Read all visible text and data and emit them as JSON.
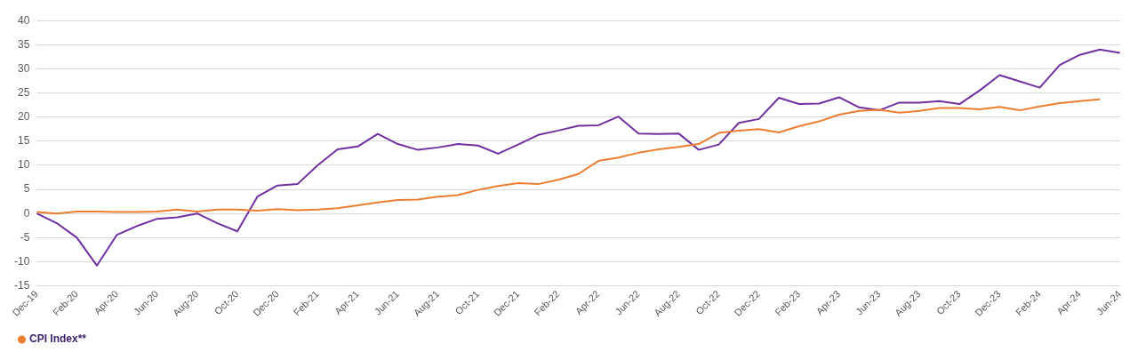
{
  "chart_data": {
    "type": "line",
    "categories": [
      "Dec-19",
      null,
      "Feb-20",
      null,
      "Apr-20",
      null,
      "Jun-20",
      null,
      "Aug-20",
      null,
      "Oct-20",
      null,
      "Dec-20",
      null,
      "Feb-21",
      null,
      "Apr-21",
      null,
      "Jun-21",
      null,
      "Aug-21",
      null,
      "Oct-21",
      null,
      "Dec-21",
      null,
      "Feb-22",
      null,
      "Apr-22",
      null,
      "Jun-22",
      null,
      "Aug-22",
      null,
      "Oct-22",
      null,
      "Dec-22",
      null,
      "Feb-23",
      null,
      "Apr-23",
      null,
      "Jun-23",
      null,
      "Aug-23",
      null,
      "Oct-23",
      null,
      "Dec-23",
      null,
      "Feb-24",
      null,
      "Apr-24",
      null,
      "Jun-24"
    ],
    "series": [
      {
        "name": "CPI Index**",
        "color": "#ed7d31",
        "values": [
          0.3,
          0,
          0.4,
          0.4,
          0.3,
          0.3,
          0.4,
          0.8,
          0.4,
          0.8,
          0.8,
          0.6,
          0.9,
          0.7,
          0.8,
          1.1,
          1.7,
          2.3,
          2.8,
          2.9,
          3.5,
          3.8,
          4.9,
          5.7,
          6.3,
          6.1,
          7.0,
          8.2,
          10.9,
          11.6,
          12.6,
          13.3,
          13.8,
          14.4,
          16.7,
          17.2,
          17.5,
          16.8,
          18.1,
          19.1,
          20.5,
          21.3,
          21.5,
          20.9,
          21.3,
          21.9,
          21.9,
          21.6,
          22.1,
          21.4,
          22.2,
          22.9,
          23.3,
          23.7,
          null
        ]
      },
      {
        "color": "#7030a0",
        "values": [
          0,
          -2,
          -5,
          -10.8,
          -4.4,
          -2.6,
          -1.1,
          -0.8,
          0,
          -2,
          -3.7,
          3.5,
          5.8,
          6.1,
          10,
          13.3,
          13.9,
          16.5,
          14.4,
          13.2,
          13.7,
          14.4,
          14.1,
          12.4,
          14.3,
          16.3,
          17.2,
          18.2,
          18.3,
          20.1,
          16.6,
          16.5,
          16.6,
          13.2,
          14.3,
          18.8,
          19.6,
          24,
          22.7,
          22.8,
          24.1,
          22,
          21.4,
          23,
          23,
          23.3,
          22.7,
          25.5,
          28.7,
          27.4,
          26.1,
          30.8,
          32.9,
          34,
          33.3
        ]
      }
    ],
    "ylim": [
      -15,
      40
    ],
    "yticks": [
      -15,
      -10,
      -5,
      0,
      5,
      10,
      15,
      20,
      25,
      30,
      35,
      40
    ],
    "grid": "y",
    "legend": "bottom left",
    "marker": "none",
    "line_style": "solid"
  }
}
